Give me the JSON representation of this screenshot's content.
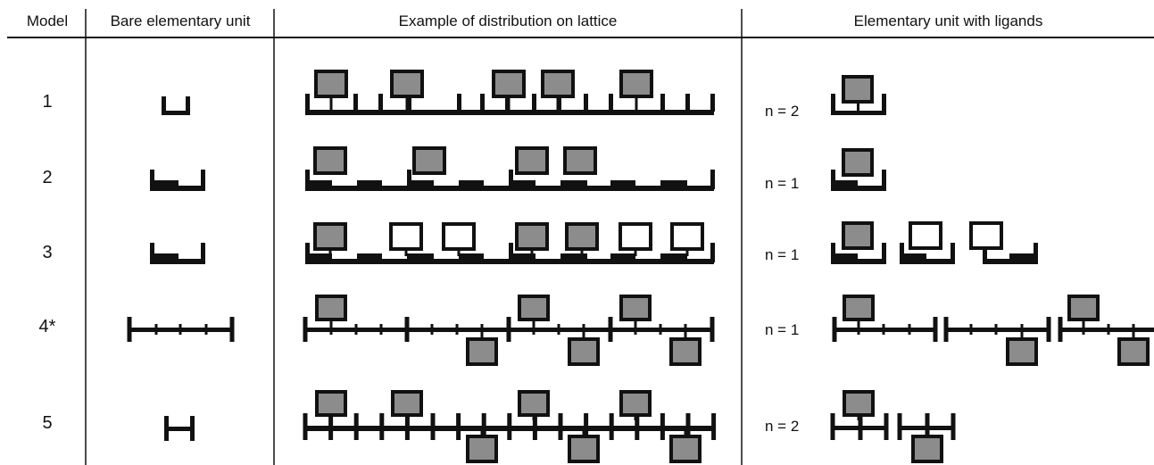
{
  "headers": {
    "model": "Model",
    "bare": "Bare elementary unit",
    "lattice": "Example of distribution on lattice",
    "ligands": "Elementary unit with ligands"
  },
  "rows": [
    {
      "model": "1",
      "n_label": "n = 2"
    },
    {
      "model": "2",
      "n_label": "n = 1"
    },
    {
      "model": "3",
      "n_label": "n = 1"
    },
    {
      "model": "4*",
      "n_label": "n = 1"
    },
    {
      "model": "5",
      "n_label": "n = 2"
    }
  ],
  "colors": {
    "ink": "#111111",
    "ligand_fill": "#8c8c8c",
    "empty_fill": "#ffffff"
  }
}
